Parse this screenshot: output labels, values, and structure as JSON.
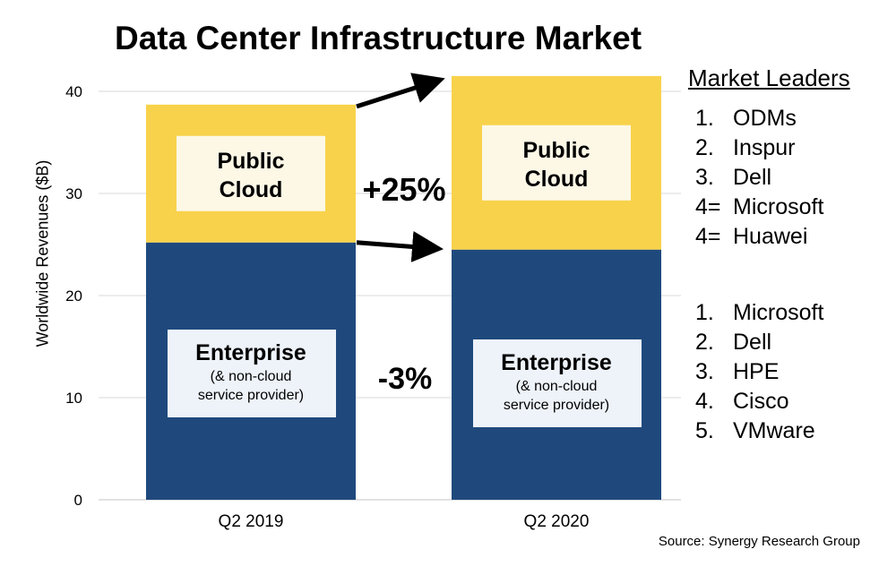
{
  "chart_data": {
    "type": "bar",
    "stacked": true,
    "title": "Data Center Infrastructure Market",
    "ylabel": "Worldwide Revenues ($B)",
    "xlabel": "",
    "ylim": [
      0,
      40
    ],
    "yticks": [
      0,
      10,
      20,
      30,
      40
    ],
    "categories": [
      "Q2 2019",
      "Q2 2020"
    ],
    "grid": true,
    "series": [
      {
        "name": "Enterprise",
        "sublabel_1": "(& non-cloud",
        "sublabel_2": "service provider)",
        "color": "#1f497d",
        "values": [
          25.2,
          24.5
        ]
      },
      {
        "name": "Public",
        "name_line2": "Cloud",
        "color": "#f8d24b",
        "values": [
          13.5,
          17.0
        ]
      }
    ],
    "annotations": {
      "cloud_growth": "+25%",
      "enterprise_growth": "-3%"
    }
  },
  "leaders": {
    "title": "Market Leaders",
    "cloud": [
      {
        "rank": "1.",
        "name": "ODMs"
      },
      {
        "rank": "2.",
        "name": "Inspur"
      },
      {
        "rank": "3.",
        "name": "Dell"
      },
      {
        "rank": "4=",
        "name": "Microsoft"
      },
      {
        "rank": "4=",
        "name": "Huawei"
      }
    ],
    "enterprise": [
      {
        "rank": "1.",
        "name": "Microsoft"
      },
      {
        "rank": "2.",
        "name": "Dell"
      },
      {
        "rank": "3.",
        "name": "HPE"
      },
      {
        "rank": "4.",
        "name": "Cisco"
      },
      {
        "rank": "5.",
        "name": "VMware"
      }
    ]
  },
  "source": "Source: Synergy Research Group",
  "colors": {
    "enterprise": "#1f497d",
    "cloud": "#f8d24b",
    "label_box_enterprise": "#eef3fa",
    "label_box_cloud": "#fdf8e6",
    "gridline": "#d9d9d9"
  }
}
